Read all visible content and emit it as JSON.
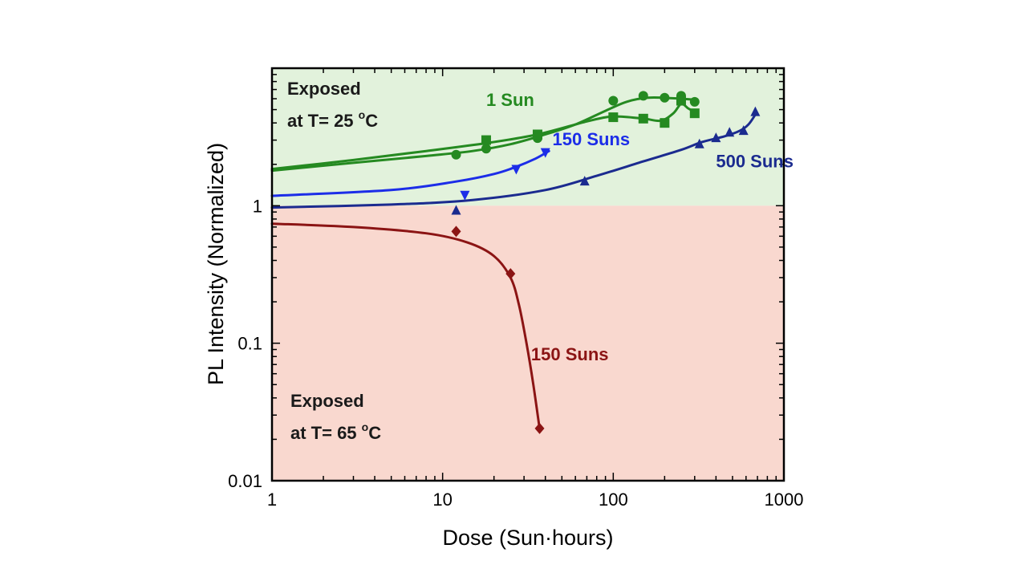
{
  "chart_data": {
    "type": "scatter",
    "xlabel": "Dose (Sun·hours)",
    "ylabel": "PL Intensity (Normalized)",
    "xscale": "log",
    "yscale": "log",
    "xlim": [
      1,
      1000
    ],
    "ylim": [
      0.01,
      10
    ],
    "xticks": [
      "1",
      "10",
      "100",
      "1000"
    ],
    "yticks": [
      "0.01",
      "0.1",
      "1"
    ],
    "regions": [
      {
        "name": "exposed-25C",
        "y_from": 1,
        "y_to": 10,
        "color": "#e2f2dc",
        "label_line1": "Exposed",
        "label_line2_prefix": "at T= 25 ",
        "label_sup": "o",
        "label_line2_suffix": "C"
      },
      {
        "name": "exposed-65C",
        "y_from": 0.01,
        "y_to": 1,
        "color": "#f9d8cf",
        "label_line1": "Exposed",
        "label_line2_prefix": "at T= 65 ",
        "label_sup": "o",
        "label_line2_suffix": "C"
      }
    ],
    "series": [
      {
        "name": "1 Sun",
        "color": "#258a21",
        "marker": "circle",
        "points": [
          [
            12,
            2.35
          ],
          [
            18,
            2.6
          ],
          [
            36,
            3.1
          ],
          [
            100,
            5.8
          ],
          [
            150,
            6.3
          ],
          [
            200,
            6.1
          ],
          [
            250,
            6.3
          ],
          [
            300,
            5.7
          ]
        ],
        "curve": [
          [
            1,
            1.8
          ],
          [
            3,
            2.05
          ],
          [
            8,
            2.3
          ],
          [
            15,
            2.5
          ],
          [
            25,
            2.8
          ],
          [
            40,
            3.3
          ],
          [
            60,
            3.9
          ],
          [
            90,
            4.9
          ],
          [
            120,
            5.7
          ],
          [
            160,
            6.1
          ],
          [
            220,
            6.05
          ],
          [
            300,
            5.9
          ]
        ]
      },
      {
        "name": "1 Sun",
        "color": "#258a21",
        "marker": "square",
        "points": [
          [
            18,
            3.0
          ],
          [
            36,
            3.3
          ],
          [
            100,
            4.4
          ],
          [
            150,
            4.3
          ],
          [
            200,
            4.0
          ],
          [
            250,
            5.8
          ],
          [
            300,
            4.7
          ]
        ],
        "curve": [
          [
            1,
            1.85
          ],
          [
            3,
            2.15
          ],
          [
            8,
            2.5
          ],
          [
            18,
            2.85
          ],
          [
            36,
            3.3
          ],
          [
            70,
            4.1
          ],
          [
            100,
            4.45
          ],
          [
            150,
            4.3
          ],
          [
            190,
            4.15
          ],
          [
            225,
            4.7
          ],
          [
            250,
            5.5
          ],
          [
            275,
            5.1
          ],
          [
            300,
            4.8
          ]
        ]
      },
      {
        "name": "150 Suns",
        "color": "#1c2de8",
        "marker": "triangle-down",
        "points": [
          [
            13.5,
            1.2
          ],
          [
            27,
            1.85
          ],
          [
            40,
            2.45
          ]
        ],
        "curve": [
          [
            1,
            1.18
          ],
          [
            5,
            1.3
          ],
          [
            12,
            1.5
          ],
          [
            20,
            1.7
          ],
          [
            27,
            1.92
          ],
          [
            35,
            2.2
          ],
          [
            42,
            2.5
          ]
        ]
      },
      {
        "name": "500 Suns",
        "color": "#1b2b8f",
        "marker": "triangle-up",
        "points": [
          [
            12,
            0.92
          ],
          [
            68,
            1.5
          ],
          [
            320,
            2.8
          ],
          [
            400,
            3.1
          ],
          [
            480,
            3.4
          ],
          [
            580,
            3.5
          ],
          [
            680,
            4.8
          ]
        ],
        "curve": [
          [
            1,
            0.97
          ],
          [
            5,
            1.02
          ],
          [
            15,
            1.1
          ],
          [
            40,
            1.3
          ],
          [
            80,
            1.65
          ],
          [
            150,
            2.1
          ],
          [
            250,
            2.55
          ],
          [
            330,
            2.9
          ],
          [
            450,
            3.2
          ],
          [
            550,
            3.5
          ],
          [
            620,
            3.9
          ],
          [
            680,
            4.6
          ]
        ]
      },
      {
        "name": "150 Suns",
        "color": "#8b1414",
        "marker": "diamond",
        "points": [
          [
            12,
            0.65
          ],
          [
            25,
            0.32
          ],
          [
            37,
            0.024
          ]
        ],
        "curve": [
          [
            1,
            0.74
          ],
          [
            3,
            0.7
          ],
          [
            8,
            0.63
          ],
          [
            14,
            0.54
          ],
          [
            20,
            0.43
          ],
          [
            25,
            0.3
          ],
          [
            28,
            0.19
          ],
          [
            31,
            0.1
          ],
          [
            34,
            0.05
          ],
          [
            37,
            0.024
          ]
        ]
      }
    ],
    "annotations": [
      {
        "text": "1 Sun",
        "color": "#258a21",
        "x": 18,
        "y": 5.3
      },
      {
        "text": "150 Suns",
        "color": "#1c2de8",
        "x": 44,
        "y": 2.75
      },
      {
        "text": "500 Suns",
        "color": "#1b2b8f",
        "x": 400,
        "y": 1.9
      },
      {
        "text": "150 Suns",
        "color": "#8b1414",
        "x": 33,
        "y": 0.075
      }
    ]
  }
}
